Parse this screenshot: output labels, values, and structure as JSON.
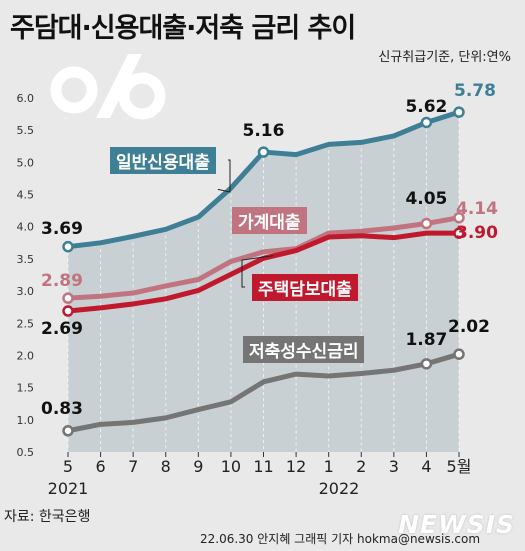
{
  "title": "주담대·신용대출·저축 금리 추이",
  "subtitle": "신규취급기준, 단위:연%",
  "source": "자료: 한국은행",
  "credit": "22.06.30 안지혜 그래픽 기자 hokma@newsis.com",
  "watermark": "NEWSIS",
  "chart_data": {
    "type": "line",
    "categories": [
      "5",
      "6",
      "7",
      "8",
      "9",
      "10",
      "11",
      "12",
      "1",
      "2",
      "3",
      "4",
      "5월"
    ],
    "year_labels": [
      {
        "index": 0,
        "label": "2021"
      },
      {
        "index": 8,
        "label": "2022"
      }
    ],
    "ylim": [
      0.5,
      6.0
    ],
    "yticks": [
      "0.5",
      "1.0",
      "1.5",
      "2.0",
      "2.5",
      "3.0",
      "3.5",
      "4.0",
      "4.5",
      "5.0",
      "5.5",
      "6.0"
    ],
    "series": [
      {
        "name": "일반신용대출",
        "color": "#3f7f96",
        "label_color": "#3f7f96",
        "values": [
          3.69,
          3.75,
          3.85,
          3.96,
          4.15,
          4.6,
          5.16,
          5.12,
          5.28,
          5.31,
          5.41,
          5.62,
          5.78
        ],
        "start_label": "3.69",
        "end_labels": [
          "5.62",
          "5.78"
        ],
        "peak_label": "5.16"
      },
      {
        "name": "가계대출",
        "color": "#c17480",
        "label_color": "#c17480",
        "values": [
          2.89,
          2.92,
          2.97,
          3.08,
          3.18,
          3.46,
          3.61,
          3.66,
          3.9,
          3.93,
          3.98,
          4.05,
          4.14
        ],
        "start_label": "2.89",
        "end_labels": [
          "4.05",
          "4.14"
        ]
      },
      {
        "name": "주택담보대출",
        "color": "#c0192d",
        "label_color": "#c0192d",
        "values": [
          2.69,
          2.74,
          2.8,
          2.88,
          3.01,
          3.26,
          3.51,
          3.63,
          3.84,
          3.86,
          3.83,
          3.9,
          3.9
        ],
        "start_label": "2.69",
        "end_labels": [
          "3.90"
        ]
      },
      {
        "name": "저축성수신금리",
        "color": "#757575",
        "label_color": "#757575",
        "values": [
          0.83,
          0.93,
          0.96,
          1.03,
          1.16,
          1.28,
          1.59,
          1.71,
          1.68,
          1.72,
          1.77,
          1.87,
          2.02
        ],
        "start_label": "0.83",
        "end_labels": [
          "1.87",
          "2.02"
        ]
      }
    ]
  }
}
